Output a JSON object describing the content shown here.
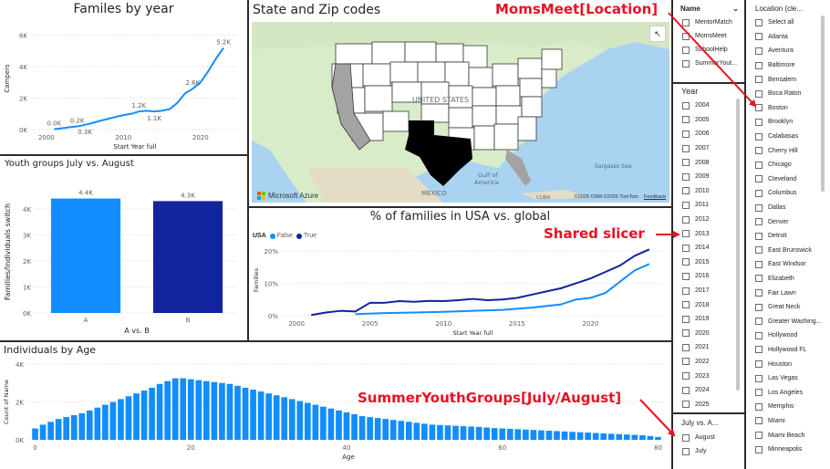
{
  "colors": {
    "blue": "#118dff",
    "dark_blue": "#12239e",
    "accent_red": "#e81123",
    "gray_text": "#605e5c",
    "grid": "#e6e6e6"
  },
  "families_chart": {
    "title": "Familes by year",
    "chart_data": {
      "type": "line",
      "title": "Familes by year",
      "xlabel": "Start Year full",
      "ylabel": "Campers",
      "xlim": [
        1998,
        2025
      ],
      "ylim": [
        0,
        6500
      ],
      "x_ticks": [
        "2000",
        "2010",
        "2020"
      ],
      "y_ticks": [
        "0K",
        "2K",
        "4K",
        "6K"
      ],
      "points": [
        {
          "x": 2001,
          "y": 20
        },
        {
          "x": 2002,
          "y": 80
        },
        {
          "x": 2003,
          "y": 150
        },
        {
          "x": 2004,
          "y": 200
        },
        {
          "x": 2005,
          "y": 300
        },
        {
          "x": 2006,
          "y": 420
        },
        {
          "x": 2007,
          "y": 560
        },
        {
          "x": 2008,
          "y": 680
        },
        {
          "x": 2009,
          "y": 800
        },
        {
          "x": 2010,
          "y": 920
        },
        {
          "x": 2011,
          "y": 1000
        },
        {
          "x": 2012,
          "y": 1150
        },
        {
          "x": 2013,
          "y": 1200
        },
        {
          "x": 2014,
          "y": 1150
        },
        {
          "x": 2015,
          "y": 1200
        },
        {
          "x": 2016,
          "y": 1300
        },
        {
          "x": 2017,
          "y": 1700
        },
        {
          "x": 2018,
          "y": 2300
        },
        {
          "x": 2019,
          "y": 2600
        },
        {
          "x": 2020,
          "y": 3000
        },
        {
          "x": 2021,
          "y": 3700
        },
        {
          "x": 2022,
          "y": 4500
        },
        {
          "x": 2023,
          "y": 5200
        }
      ],
      "labels": [
        {
          "x": 2001,
          "y": 20,
          "text": "0.0K",
          "pos": "above"
        },
        {
          "x": 2004,
          "y": 200,
          "text": "0.2K",
          "pos": "above"
        },
        {
          "x": 2005,
          "y": 300,
          "text": "0.3K",
          "pos": "below"
        },
        {
          "x": 2012,
          "y": 1150,
          "text": "1.2K",
          "pos": "above"
        },
        {
          "x": 2014,
          "y": 1150,
          "text": "1.1K",
          "pos": "below"
        },
        {
          "x": 2019,
          "y": 2600,
          "text": "2.6K",
          "pos": "above"
        },
        {
          "x": 2023,
          "y": 5200,
          "text": "5.2K",
          "pos": "above"
        }
      ]
    }
  },
  "youth_chart": {
    "title": "Youth groups July vs. August",
    "chart_data": {
      "type": "bar",
      "title": "Youth groups July vs. August",
      "xlabel": "A vs. B",
      "ylabel": "Families/Individuals switch",
      "categories": [
        "A",
        "B"
      ],
      "values": [
        4400,
        4300
      ],
      "value_labels": [
        "4.4K",
        "4.3K"
      ],
      "bar_colors": [
        "#118dff",
        "#12239e"
      ],
      "ylim": [
        0,
        4700
      ],
      "y_ticks": [
        "0K",
        "1K",
        "2K",
        "3K",
        "4K"
      ]
    }
  },
  "map": {
    "title": "State and Zip codes",
    "country_label": "UNITED STATES",
    "gulf_label_1": "Gulf of",
    "gulf_label_2": "America",
    "sargasso_label": "Sargasso Sea",
    "mexico_label": "MEXICO",
    "cuba_label": "CUBA",
    "brand": "Microsoft Azure",
    "copyright": "©2025 OSM  ©2025 TomTom",
    "feedback": "Feedback"
  },
  "pct_chart": {
    "title": "% of families in USA vs. global",
    "legend_title": "USA",
    "chart_data": {
      "type": "line",
      "title": "% of families in USA vs. global",
      "xlabel": "Start Year full",
      "ylabel": "Families",
      "xlim": [
        1999,
        2025
      ],
      "ylim": [
        0,
        22
      ],
      "x_ticks": [
        "2000",
        "2005",
        "2010",
        "2015",
        "2020"
      ],
      "y_ticks": [
        "0%",
        "10%",
        "20%"
      ],
      "legend": "top-left",
      "series": [
        {
          "name": "False",
          "color": "#118dff",
          "points": [
            {
              "x": 2004,
              "y": 0.5
            },
            {
              "x": 2006,
              "y": 0.8
            },
            {
              "x": 2008,
              "y": 1.0
            },
            {
              "x": 2010,
              "y": 1.2
            },
            {
              "x": 2012,
              "y": 1.5
            },
            {
              "x": 2014,
              "y": 1.8
            },
            {
              "x": 2016,
              "y": 2.5
            },
            {
              "x": 2018,
              "y": 3.5
            },
            {
              "x": 2019,
              "y": 5.0
            },
            {
              "x": 2020,
              "y": 5.5
            },
            {
              "x": 2021,
              "y": 7.0
            },
            {
              "x": 2022,
              "y": 10.5
            },
            {
              "x": 2023,
              "y": 14.0
            },
            {
              "x": 2024,
              "y": 16.0
            }
          ]
        },
        {
          "name": "True",
          "color": "#12239e",
          "points": [
            {
              "x": 2001,
              "y": 0.2
            },
            {
              "x": 2002,
              "y": 1.0
            },
            {
              "x": 2003,
              "y": 1.5
            },
            {
              "x": 2004,
              "y": 1.3
            },
            {
              "x": 2005,
              "y": 4.0
            },
            {
              "x": 2006,
              "y": 4.0
            },
            {
              "x": 2007,
              "y": 4.5
            },
            {
              "x": 2008,
              "y": 4.3
            },
            {
              "x": 2009,
              "y": 4.6
            },
            {
              "x": 2010,
              "y": 4.5
            },
            {
              "x": 2011,
              "y": 4.8
            },
            {
              "x": 2012,
              "y": 5.2
            },
            {
              "x": 2013,
              "y": 4.8
            },
            {
              "x": 2014,
              "y": 5.0
            },
            {
              "x": 2015,
              "y": 5.5
            },
            {
              "x": 2016,
              "y": 6.5
            },
            {
              "x": 2017,
              "y": 7.5
            },
            {
              "x": 2018,
              "y": 8.5
            },
            {
              "x": 2019,
              "y": 10.0
            },
            {
              "x": 2020,
              "y": 11.5
            },
            {
              "x": 2021,
              "y": 13.5
            },
            {
              "x": 2022,
              "y": 15.5
            },
            {
              "x": 2023,
              "y": 18.5
            },
            {
              "x": 2024,
              "y": 20.5
            }
          ]
        }
      ]
    }
  },
  "age_chart": {
    "title": "Individuals by Age",
    "chart_data": {
      "type": "bar",
      "title": "Individuals by Age",
      "xlabel": "Age",
      "ylabel": "Count of Name",
      "ylim": [
        0,
        4000
      ],
      "xlim": [
        -1,
        81
      ],
      "x_ticks": [
        0,
        20,
        40,
        60,
        80
      ],
      "y_ticks": [
        "0K",
        "2K",
        "4K"
      ],
      "values": [
        600,
        800,
        950,
        1100,
        1200,
        1300,
        1400,
        1550,
        1700,
        1850,
        2000,
        2150,
        2300,
        2450,
        2600,
        2750,
        2950,
        3100,
        3250,
        3250,
        3200,
        3150,
        3100,
        3050,
        3000,
        2950,
        2850,
        2750,
        2650,
        2550,
        2450,
        2350,
        2250,
        2150,
        2050,
        1950,
        1850,
        1750,
        1650,
        1550,
        1450,
        1350,
        1250,
        1200,
        1150,
        1100,
        1050,
        1000,
        950,
        900,
        850,
        800,
        780,
        760,
        740,
        720,
        700,
        680,
        650,
        620,
        600,
        580,
        560,
        540,
        520,
        500,
        480,
        460,
        440,
        420,
        400,
        380,
        360,
        340,
        320,
        300,
        280,
        260,
        240,
        200,
        150
      ]
    }
  },
  "name_slicer": {
    "title": "Name",
    "items": [
      "MentorMatch",
      "MomsMeet",
      "SchoolHelp",
      "SummerYout..."
    ]
  },
  "year_slicer": {
    "title": "Year",
    "items": [
      "2004",
      "2005",
      "2006",
      "2007",
      "2008",
      "2009",
      "2010",
      "2011",
      "2012",
      "2013",
      "2014",
      "2015",
      "2016",
      "2017",
      "2018",
      "2019",
      "2020",
      "2021",
      "2022",
      "2023",
      "2024",
      "2025"
    ]
  },
  "july_slicer": {
    "title": "July vs. A...",
    "items": [
      "August",
      "July"
    ]
  },
  "location_slicer": {
    "title": "Location (cle...",
    "items": [
      "Select all",
      "Atlanta",
      "Aventura",
      "Baltimore",
      "Bensalem",
      "Boca Raton",
      "Boston",
      "Brooklyn",
      "Calabasas",
      "Cherry Hill",
      "Chicago",
      "Cleveland",
      "Columbus",
      "Dallas",
      "Denver",
      "Detroit",
      "East Brunswick",
      "East Windsor",
      "Elizabeth",
      "Fair Lawn",
      "Great Neck",
      "Greater Washing...",
      "Hollywood",
      "Hollywood FL",
      "Houston",
      "Las Vegas",
      "Los Angeles",
      "Memphis",
      "Miami",
      "Miami Beach",
      "Minneapolis"
    ]
  },
  "annotations": {
    "moms_meet": "MomsMeet[Location]",
    "shared_slicer": "Shared slicer",
    "summer_youth": "SummerYouthGroups[July/August]"
  }
}
